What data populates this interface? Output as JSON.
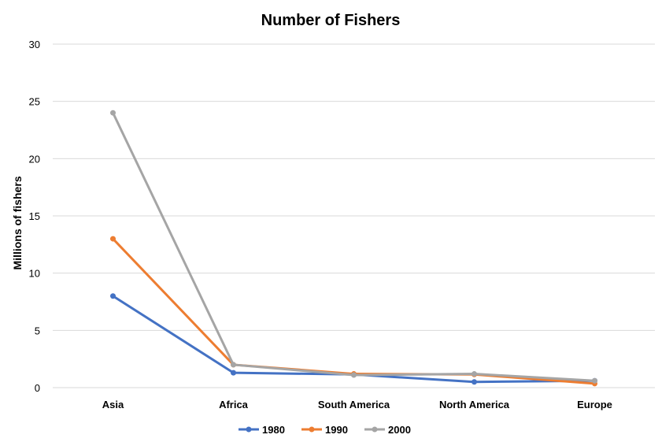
{
  "chart_data": {
    "type": "line",
    "title": "Number of Fishers",
    "xlabel": "",
    "ylabel": "Millions of fishers",
    "categories": [
      "Asia",
      "Africa",
      "South America",
      "North America",
      "Europe"
    ],
    "ylim": [
      0,
      30
    ],
    "yticks": [
      0,
      5,
      10,
      15,
      20,
      25,
      30
    ],
    "grid": true,
    "legend": "bottom",
    "series": [
      {
        "name": "1980",
        "color": "#4472C4",
        "values": [
          8.0,
          1.3,
          1.15,
          0.5,
          0.6
        ]
      },
      {
        "name": "1990",
        "color": "#ED7D31",
        "values": [
          13.0,
          2.0,
          1.2,
          1.15,
          0.35
        ]
      },
      {
        "name": "2000",
        "color": "#A5A5A5",
        "values": [
          24.0,
          2.0,
          1.1,
          1.2,
          0.6
        ]
      }
    ]
  }
}
